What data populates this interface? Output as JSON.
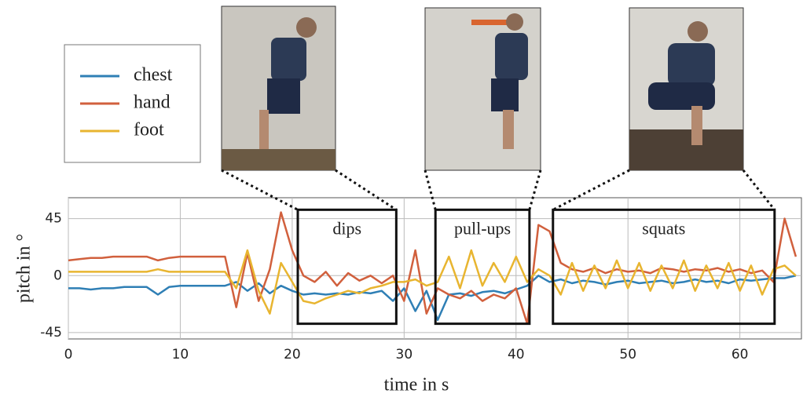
{
  "chart_data": {
    "type": "line",
    "x_label": "time in s",
    "y_label": "pitch in °",
    "x": [
      0,
      1,
      2,
      3,
      4,
      5,
      6,
      7,
      8,
      9,
      10,
      11,
      12,
      13,
      14,
      15,
      16,
      17,
      18,
      19,
      20,
      21,
      22,
      23,
      24,
      25,
      26,
      27,
      28,
      29,
      30,
      31,
      32,
      33,
      34,
      35,
      36,
      37,
      38,
      39,
      40,
      41,
      42,
      43,
      44,
      45,
      46,
      47,
      48,
      49,
      50,
      51,
      52,
      53,
      54,
      55,
      56,
      57,
      58,
      59,
      60,
      61,
      62,
      63,
      64,
      65
    ],
    "series": [
      {
        "name": "chest",
        "color": "#2f7fb5",
        "values": [
          -10,
          -10,
          -11,
          -10,
          -10,
          -9,
          -9,
          -9,
          -15,
          -9,
          -8,
          -8,
          -8,
          -8,
          -8,
          -5,
          -12,
          -6,
          -14,
          -8,
          -12,
          -15,
          -14,
          -15,
          -14,
          -15,
          -13,
          -14,
          -12,
          -20,
          -10,
          -28,
          -12,
          -35,
          -15,
          -14,
          -16,
          -13,
          -12,
          -14,
          -11,
          -8,
          0,
          -5,
          -3,
          -6,
          -4,
          -5,
          -7,
          -5,
          -4,
          -6,
          -5,
          -4,
          -6,
          -5,
          -3,
          -5,
          -4,
          -6,
          -3,
          -4,
          -3,
          -2,
          -2,
          0
        ]
      },
      {
        "name": "hand",
        "color": "#d1603d",
        "values": [
          12,
          13,
          14,
          14,
          15,
          15,
          15,
          15,
          12,
          14,
          15,
          15,
          15,
          15,
          15,
          -25,
          18,
          -20,
          5,
          50,
          20,
          0,
          -5,
          3,
          -8,
          2,
          -4,
          0,
          -6,
          0,
          -20,
          20,
          -30,
          -10,
          -15,
          -18,
          -12,
          -20,
          -15,
          -18,
          -10,
          -38,
          40,
          35,
          10,
          5,
          3,
          6,
          2,
          5,
          3,
          4,
          2,
          6,
          5,
          3,
          5,
          4,
          6,
          3,
          5,
          2,
          4,
          -5,
          45,
          15
        ]
      },
      {
        "name": "foot",
        "color": "#e8b530",
        "values": [
          3,
          3,
          3,
          3,
          3,
          3,
          3,
          3,
          5,
          3,
          3,
          3,
          3,
          3,
          3,
          -10,
          20,
          -12,
          -30,
          10,
          -5,
          -20,
          -22,
          -18,
          -15,
          -12,
          -14,
          -10,
          -8,
          -5,
          -5,
          -3,
          -8,
          -5,
          15,
          -10,
          20,
          -8,
          10,
          -5,
          15,
          -5,
          5,
          0,
          -15,
          10,
          -12,
          8,
          -10,
          12,
          -10,
          10,
          -12,
          8,
          -10,
          12,
          -12,
          8,
          -10,
          10,
          -12,
          8,
          -15,
          5,
          8,
          0
        ]
      }
    ],
    "xlim": [
      0,
      65.5
    ],
    "ylim": [
      -50,
      61.5
    ],
    "xticks": [
      0,
      10,
      20,
      30,
      40,
      50,
      60
    ],
    "yticks": [
      -45,
      0,
      45
    ],
    "grid": true,
    "legend": "upper left",
    "annotations": [
      {
        "text": "dips",
        "x": [
          20.5,
          29.3
        ],
        "y": [
          -38,
          52
        ]
      },
      {
        "text": "pull-ups",
        "x": [
          32.8,
          41.2
        ],
        "y": [
          -38,
          52
        ]
      },
      {
        "text": "squats",
        "x": [
          43.3,
          63.1
        ],
        "y": [
          -38,
          52
        ]
      }
    ]
  }
}
